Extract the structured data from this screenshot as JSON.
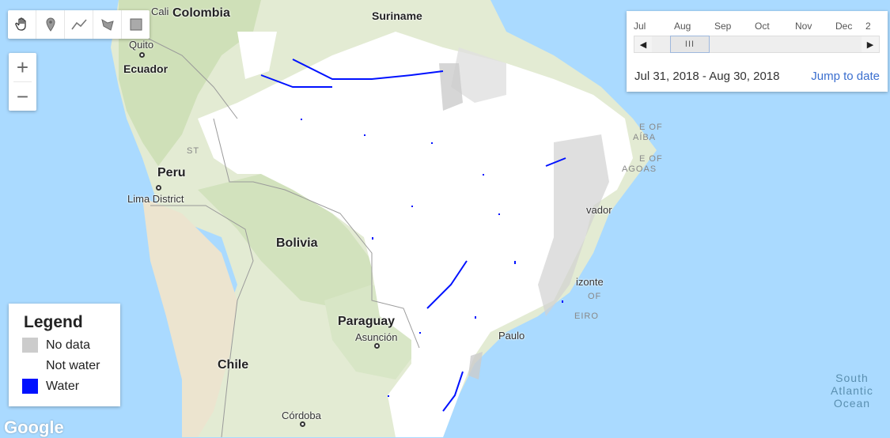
{
  "toolbar": {
    "tools": [
      {
        "name": "hand-icon",
        "label": "Pan"
      },
      {
        "name": "marker-icon",
        "label": "Add marker"
      },
      {
        "name": "line-icon",
        "label": "Draw line"
      },
      {
        "name": "polygon-icon",
        "label": "Draw shape"
      },
      {
        "name": "rectangle-icon",
        "label": "Draw rectangle"
      }
    ]
  },
  "zoom": {
    "in_label": "+",
    "out_label": "−"
  },
  "timeline": {
    "months": [
      "Jul",
      "Aug",
      "Sep",
      "Oct",
      "Nov",
      "Dec",
      "2"
    ],
    "prev_label": "◀",
    "next_label": "▶",
    "thumb_label": "III",
    "range_text": "Jul 31, 2018 - Aug 30, 2018",
    "jump_label": "Jump to date"
  },
  "legend": {
    "title": "Legend",
    "items": [
      {
        "label": "No data",
        "color": "#cccccc"
      },
      {
        "label": "Not water",
        "color": "#ffffff"
      },
      {
        "label": "Water",
        "color": "#0011ff"
      }
    ]
  },
  "labels": {
    "countries": {
      "colombia": "Colombia",
      "suriname": "Suriname",
      "ecuador": "Ecuador",
      "peru": "Peru",
      "bolivia": "Bolivia",
      "paraguay": "Paraguay",
      "chile": "Chile"
    },
    "cities": {
      "cali": "Cali",
      "quito": "Quito",
      "lima": "Lima District",
      "asuncion": "Asunción",
      "cordoba": "Córdoba",
      "salvador": "vador",
      "belohorizonte": "izonte",
      "saopaulo": "Paulo"
    },
    "states": {
      "st": "ST",
      "paraiba1": "E OF",
      "paraiba2": "AÍBA",
      "alagoas1": "E OF",
      "alagoas2": "AGOAS",
      "rio1": "OF",
      "rio2": "EIRO"
    },
    "ocean": {
      "line1": "South",
      "line2": "Atlantic",
      "line3": "Ocean"
    }
  },
  "attribution": "Google",
  "colors": {
    "ocean": "#aadaff",
    "water": "#0011ff",
    "nodata": "#cccccc",
    "land": "#e8eed8"
  }
}
